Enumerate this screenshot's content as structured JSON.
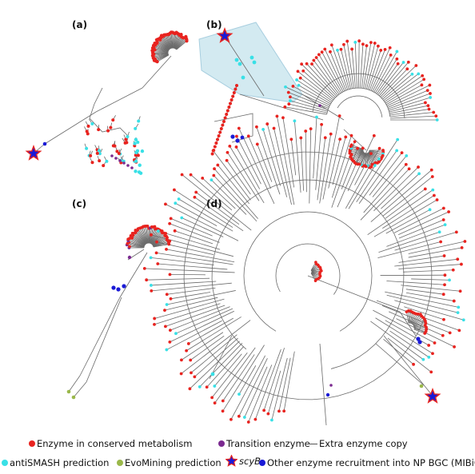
{
  "panels": [
    {
      "id": "a",
      "label": "(a)"
    },
    {
      "id": "b",
      "label": "(b)"
    },
    {
      "id": "c",
      "label": "(c)"
    },
    {
      "id": "d",
      "label": "(d)"
    }
  ],
  "legend": {
    "conserved": {
      "label": "Enzyme in conserved metabolism",
      "color": "#e8231f"
    },
    "transition": {
      "label": "Transition enzyme",
      "color": "#7b2a90"
    },
    "extra": {
      "label": "Extra enzyme copy",
      "color": "#555555"
    },
    "antismash": {
      "label": "antiSMASH prediction",
      "color": "#39e0e6"
    },
    "evomining": {
      "label": "EvoMining prediction",
      "color": "#9ab84a"
    },
    "scyb": {
      "label": "scyB",
      "color": "#1a1ad6"
    },
    "mibig": {
      "label": "Other enzyme recruitment into NP BGC (MIBiG)",
      "color": "#1a1ad6"
    }
  }
}
